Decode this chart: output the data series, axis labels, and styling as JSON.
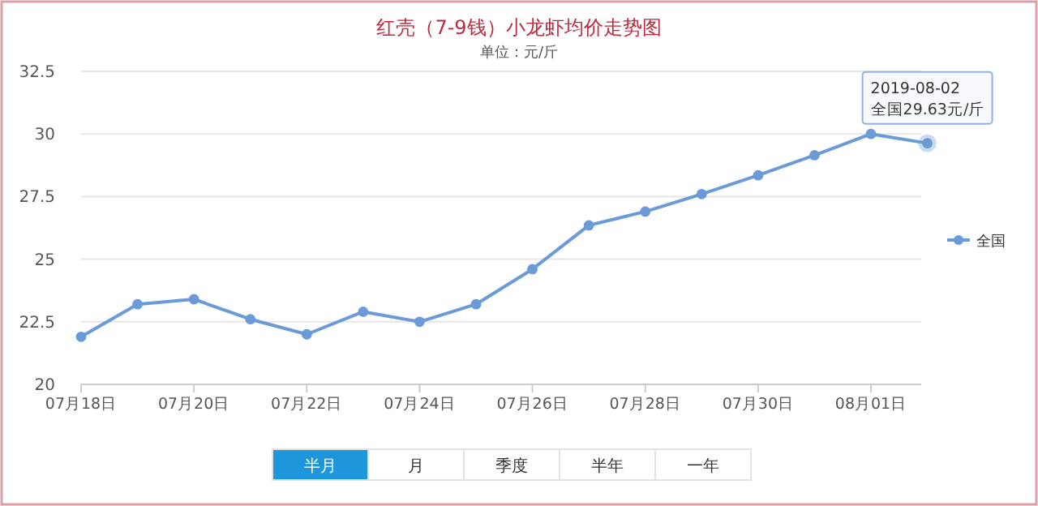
{
  "chart_data": {
    "type": "line",
    "title": "红壳（7-9钱）小龙虾均价走势图",
    "subtitle": "单位：元/斤",
    "categories": [
      "07月18日",
      null,
      "07月20日",
      null,
      "07月22日",
      null,
      "07月24日",
      null,
      "07月26日",
      null,
      "07月28日",
      null,
      "07月30日",
      null,
      "08月01日",
      null
    ],
    "series": [
      {
        "name": "全国",
        "color": "#6a9bd8",
        "values": [
          21.9,
          23.2,
          23.4,
          22.6,
          22.0,
          22.9,
          22.5,
          23.2,
          24.6,
          26.35,
          26.9,
          27.6,
          28.35,
          29.15,
          30.0,
          29.63
        ]
      }
    ],
    "ylim": [
      20,
      32.5
    ],
    "yticks": [
      20,
      22.5,
      25,
      27.5,
      30,
      32.5
    ],
    "grid": "y",
    "legend": "right",
    "marker": "circle",
    "line_style": "solid",
    "annotations": [
      {
        "text": "2019-08-02\n全国29.63元/斤",
        "y": 29.63
      },
      "半月",
      "月",
      "季度",
      "半年",
      "一年"
    ]
  }
}
